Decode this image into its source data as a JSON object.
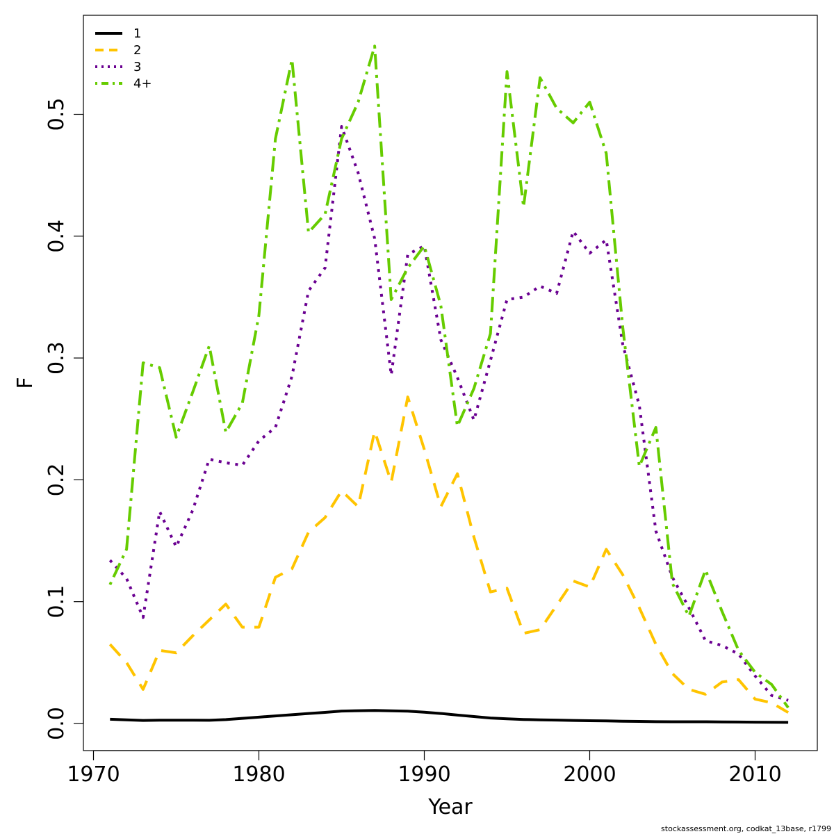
{
  "chart_data": {
    "type": "line",
    "title": "",
    "xlabel": "Year",
    "ylabel": "F",
    "xlim": [
      1970,
      2013
    ],
    "ylim": [
      0,
      0.56
    ],
    "x_ticks": [
      1970,
      1980,
      1990,
      2000,
      2010
    ],
    "x_tick_labels": [
      "1970",
      "1980",
      "1990",
      "2000",
      "2010"
    ],
    "y_ticks": [
      0.0,
      0.1,
      0.2,
      0.3,
      0.4,
      0.5
    ],
    "y_tick_labels": [
      "0.0",
      "0.1",
      "0.2",
      "0.3",
      "0.4",
      "0.5"
    ],
    "grid": false,
    "legend_position": "top-left",
    "x": [
      1971,
      1972,
      1973,
      1974,
      1975,
      1976,
      1977,
      1978,
      1979,
      1980,
      1981,
      1982,
      1983,
      1984,
      1985,
      1986,
      1987,
      1988,
      1989,
      1990,
      1991,
      1992,
      1993,
      1994,
      1995,
      1996,
      1997,
      1998,
      1999,
      2000,
      2001,
      2002,
      2003,
      2004,
      2005,
      2006,
      2007,
      2008,
      2009,
      2010,
      2011,
      2012
    ],
    "series": [
      {
        "name": "1",
        "color": "#000000",
        "dash": "solid",
        "values": [
          0.0035,
          0.003,
          0.0025,
          0.0027,
          0.0027,
          0.0027,
          0.0026,
          0.0032,
          0.0042,
          0.0052,
          0.0062,
          0.0072,
          0.0082,
          0.0091,
          0.0102,
          0.0105,
          0.0107,
          0.0104,
          0.0101,
          0.0093,
          0.0082,
          0.0069,
          0.0057,
          0.0045,
          0.0038,
          0.0033,
          0.003,
          0.0028,
          0.0025,
          0.0023,
          0.0021,
          0.0019,
          0.0017,
          0.0015,
          0.0014,
          0.0014,
          0.0014,
          0.0013,
          0.0012,
          0.0011,
          0.001,
          0.0009
        ]
      },
      {
        "name": "2",
        "color": "#FFC400",
        "dash": "dashed",
        "values": [
          0.065,
          0.05,
          0.028,
          0.06,
          0.058,
          0.072,
          0.085,
          0.098,
          0.079,
          0.079,
          0.12,
          0.127,
          0.157,
          0.169,
          0.191,
          0.178,
          0.24,
          0.198,
          0.268,
          0.225,
          0.178,
          0.205,
          0.153,
          0.108,
          0.111,
          0.074,
          0.077,
          0.097,
          0.117,
          0.112,
          0.143,
          0.122,
          0.095,
          0.065,
          0.041,
          0.028,
          0.024,
          0.034,
          0.036,
          0.02,
          0.017,
          0.009
        ]
      },
      {
        "name": "3",
        "color": "#6A0091",
        "dash": "dotted",
        "values": [
          0.134,
          0.119,
          0.087,
          0.174,
          0.145,
          0.175,
          0.217,
          0.214,
          0.212,
          0.232,
          0.243,
          0.285,
          0.355,
          0.374,
          0.49,
          0.452,
          0.398,
          0.286,
          0.385,
          0.392,
          0.315,
          0.284,
          0.249,
          0.298,
          0.348,
          0.35,
          0.359,
          0.353,
          0.404,
          0.386,
          0.397,
          0.311,
          0.261,
          0.158,
          0.12,
          0.095,
          0.068,
          0.064,
          0.057,
          0.039,
          0.023,
          0.019
        ]
      },
      {
        "name": "4+",
        "color": "#66CC00",
        "dash": "dashdot",
        "values": [
          0.114,
          0.143,
          0.296,
          0.292,
          0.235,
          0.272,
          0.31,
          0.239,
          0.263,
          0.335,
          0.48,
          0.545,
          0.403,
          0.418,
          0.48,
          0.51,
          0.556,
          0.348,
          0.374,
          0.392,
          0.343,
          0.244,
          0.275,
          0.32,
          0.535,
          0.424,
          0.53,
          0.505,
          0.493,
          0.51,
          0.468,
          0.325,
          0.211,
          0.243,
          0.115,
          0.088,
          0.126,
          0.092,
          0.06,
          0.042,
          0.032,
          0.013
        ]
      }
    ]
  },
  "footer_note": "stockassessment.org, codkat_13base, r1799"
}
